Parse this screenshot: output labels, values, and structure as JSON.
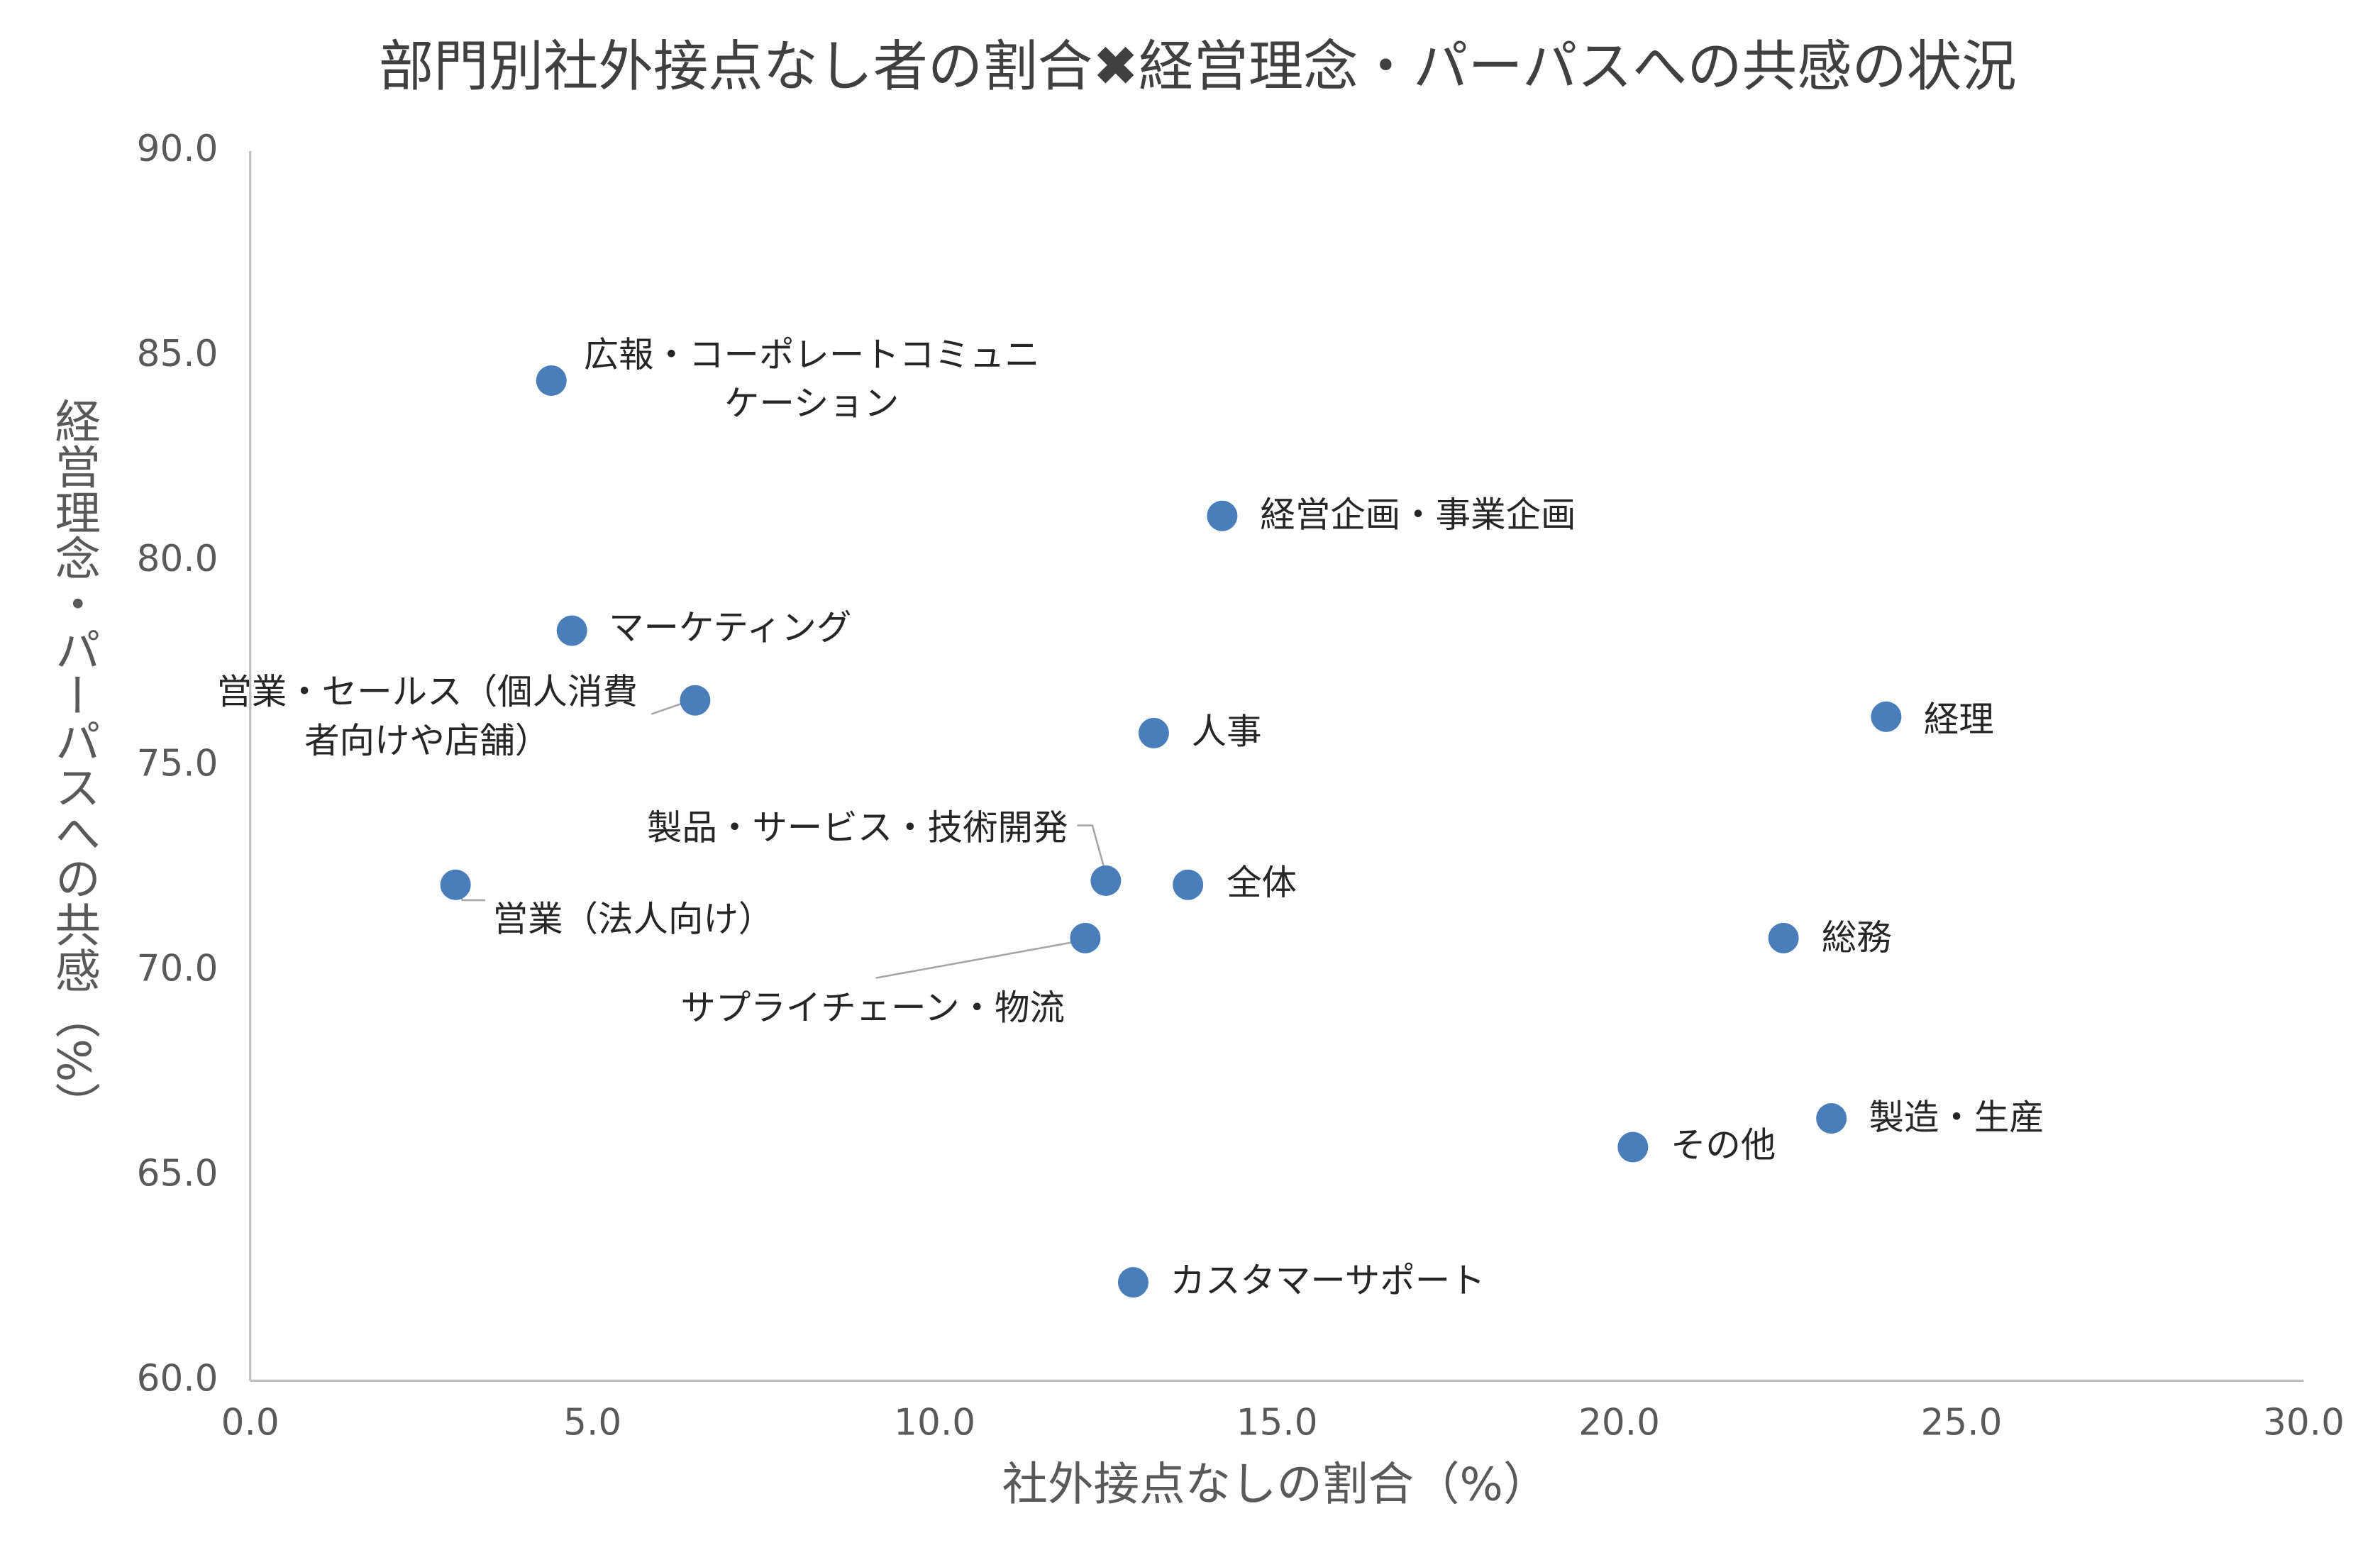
{
  "chart_data": {
    "type": "scatter",
    "title": "部門別社外接点なし者の割合✖経営理念・パーパスへの共感の状況",
    "x_label": "社外接点なしの割合（%）",
    "y_label": "経営理念・パーパスへの共感（%）",
    "xlim": [
      0,
      30
    ],
    "ylim": [
      60,
      90
    ],
    "xticks": [
      {
        "value": 0,
        "label": "0.0"
      },
      {
        "value": 5,
        "label": "5.0"
      },
      {
        "value": 10,
        "label": "10.0"
      },
      {
        "value": 15,
        "label": "15.0"
      },
      {
        "value": 20,
        "label": "20.0"
      },
      {
        "value": 25,
        "label": "25.0"
      },
      {
        "value": 30,
        "label": "30.0"
      }
    ],
    "yticks": [
      {
        "value": 60,
        "label": "60.0"
      },
      {
        "value": 65,
        "label": "65.0"
      },
      {
        "value": 70,
        "label": "70.0"
      },
      {
        "value": 75,
        "label": "75.0"
      },
      {
        "value": 80,
        "label": "80.0"
      },
      {
        "value": 85,
        "label": "85.0"
      },
      {
        "value": 90,
        "label": "90.0"
      }
    ],
    "grid": false,
    "series": [
      {
        "color": "#4a7ebb",
        "x": [
          4.4,
          14.2,
          4.7,
          6.5,
          13.2,
          23.9,
          12.5,
          13.7,
          3.0,
          12.2,
          22.4,
          23.1,
          20.2,
          12.9
        ],
        "values": [
          84.4,
          81.1,
          78.3,
          76.6,
          75.8,
          76.2,
          72.2,
          72.1,
          72.1,
          70.8,
          70.8,
          66.4,
          65.7,
          62.4
        ],
        "labels": [
          [
            "広報・コーポレートコミュニ",
            "ケーション"
          ],
          [
            "経営企画・事業企画"
          ],
          [
            "マーケティング"
          ],
          [
            "営業・セールス（個人消費",
            "者向けや店舗）"
          ],
          [
            "人事"
          ],
          [
            "経理"
          ],
          [
            "製品・サービス・技術開発"
          ],
          [
            "全体"
          ],
          [
            "営業（法人向け）"
          ],
          [
            "サプライチェーン・物流"
          ],
          [
            "総務"
          ],
          [
            "製造・生産"
          ],
          [
            "その他"
          ],
          [
            "カスタマーサポート"
          ]
        ]
      }
    ]
  }
}
